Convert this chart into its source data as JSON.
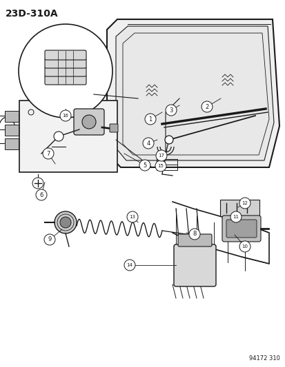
{
  "title": "23D-310A",
  "footer": "94172 310",
  "bg_color": "#ffffff",
  "line_color": "#1a1a1a",
  "fig_width": 4.14,
  "fig_height": 5.33,
  "dpi": 100
}
